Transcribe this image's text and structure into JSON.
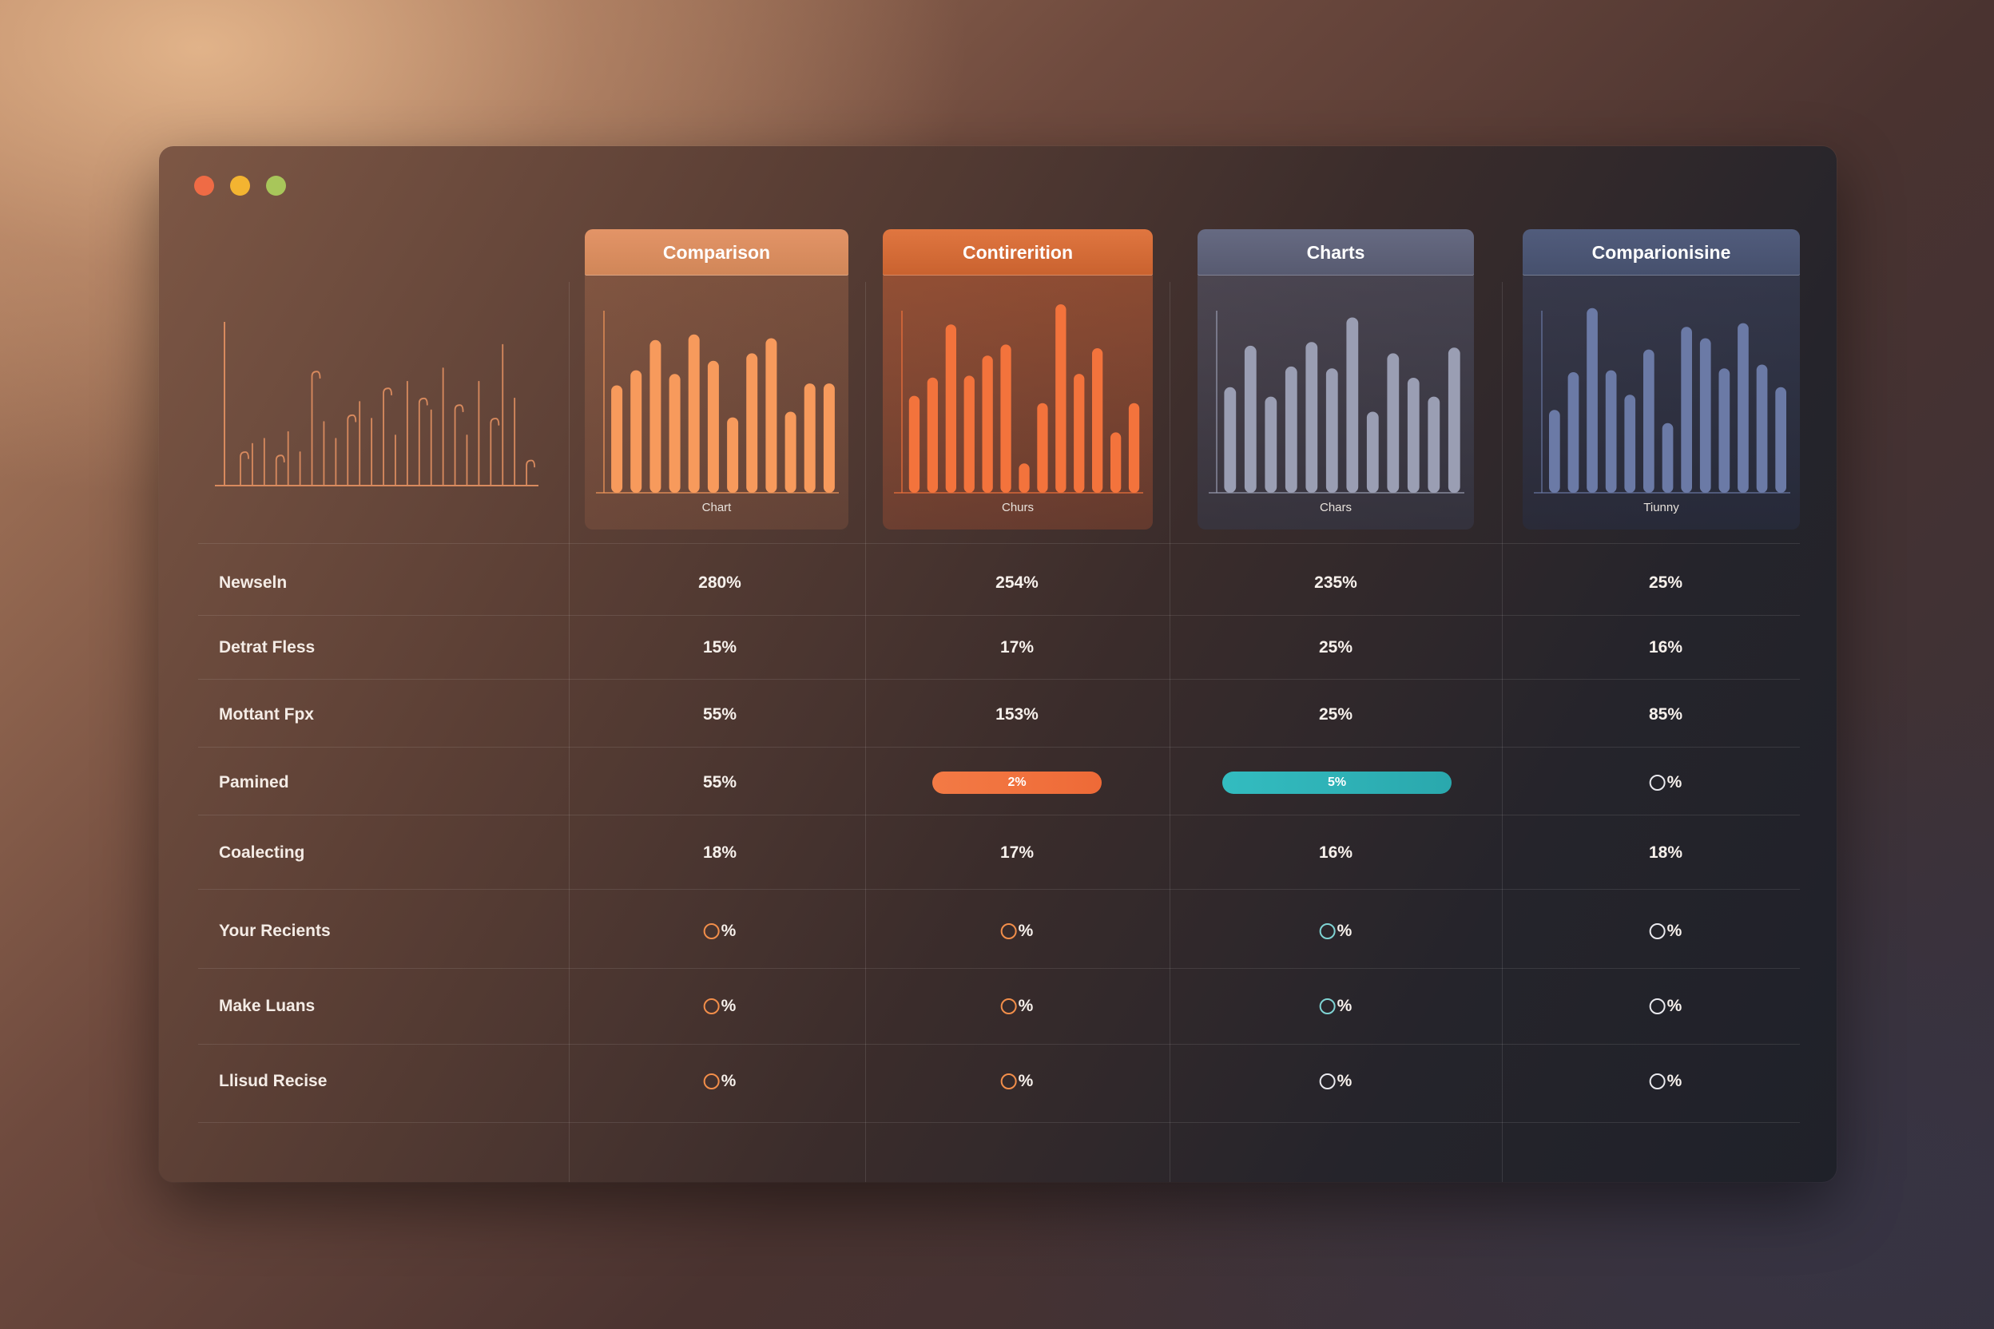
{
  "window": {
    "controls": [
      "close",
      "minimize",
      "zoom"
    ]
  },
  "colors": {
    "orange_light": "#f79a5c",
    "orange": "#f3733c",
    "slate": "#9a9eb3",
    "blue_slate": "#6b7aa6",
    "teal": "#2fb3b8",
    "sketch_line": "#d88a5e"
  },
  "columns": [
    {
      "title": "Comparison",
      "chart_label": "Chart",
      "accent": "#f79a5c"
    },
    {
      "title": "Contirerition",
      "chart_label": "Churs",
      "accent": "#f3733c"
    },
    {
      "title": "Charts",
      "chart_label": "Chars",
      "accent": "#9a9eb3"
    },
    {
      "title": "Comparionisine",
      "chart_label": "Tiunny",
      "accent": "#6b7aa6"
    }
  ],
  "rows": [
    {
      "label": "Newseln",
      "cells": [
        "280%",
        "254%",
        "235%",
        "25%"
      ]
    },
    {
      "label": "Detrat Fless",
      "cells": [
        "15%",
        "17%",
        "25%",
        "16%"
      ]
    },
    {
      "label": "Mottant Fpx",
      "cells": [
        "55%",
        "153%",
        "25%",
        "85%"
      ]
    },
    {
      "label": "Pamined",
      "cells": [
        "55%",
        "2%",
        "5%",
        "%"
      ]
    },
    {
      "label": "Coalecting",
      "cells": [
        "18%",
        "17%",
        "16%",
        "18%"
      ]
    },
    {
      "label": "Your Recients",
      "cells": [
        "%",
        "%",
        "%",
        "%"
      ]
    },
    {
      "label": "Make Luans",
      "cells": [
        "%",
        "%",
        "%",
        "%"
      ]
    },
    {
      "label": "Llisud Recise",
      "cells": [
        "%",
        "%",
        "%",
        "%"
      ]
    }
  ],
  "chart_data": [
    {
      "type": "bar",
      "ylim": [
        0,
        100
      ],
      "values": [
        57,
        65,
        81,
        63,
        84,
        70,
        40,
        74,
        82,
        43,
        58,
        58
      ]
    },
    {
      "type": "bar",
      "ylim": [
        0,
        100
      ],
      "values": [
        53,
        63,
        92,
        64,
        75,
        81,
        16,
        49,
        103,
        65,
        79,
        33,
        49
      ]
    },
    {
      "type": "bar",
      "ylim": [
        0,
        100
      ],
      "values": [
        56,
        78,
        51,
        67,
        80,
        66,
        93,
        43,
        74,
        61,
        51,
        77
      ]
    },
    {
      "type": "bar",
      "ylim": [
        0,
        100
      ],
      "values": [
        44,
        64,
        98,
        65,
        52,
        76,
        37,
        88,
        82,
        66,
        90,
        68,
        56
      ]
    },
    {
      "type": "line",
      "ylim": [
        0,
        100
      ],
      "values": [
        20,
        25,
        28,
        18,
        32,
        20,
        68,
        38,
        28,
        42,
        50,
        40,
        58,
        30,
        62,
        52,
        45,
        70,
        48,
        30,
        62,
        40,
        84,
        52,
        15
      ]
    }
  ]
}
